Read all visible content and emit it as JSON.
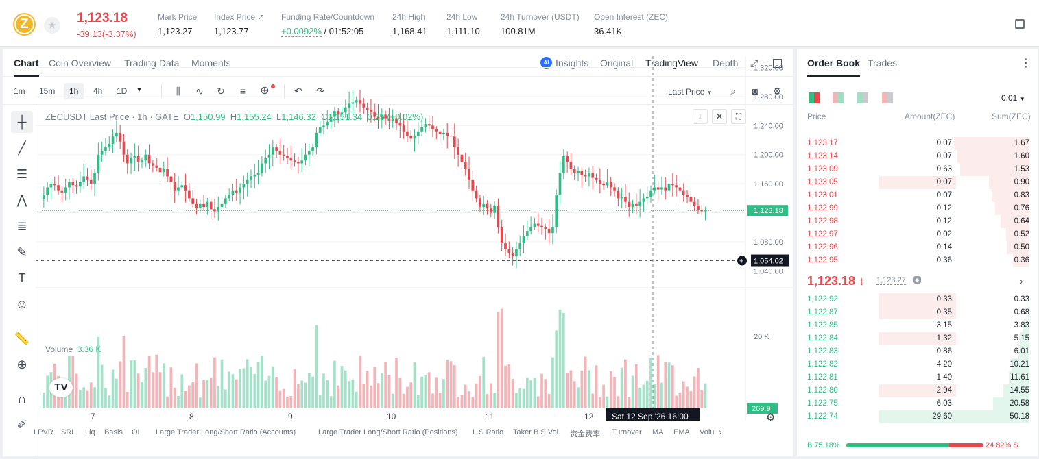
{
  "header": {
    "price": "1,123.18",
    "change": "-39.13(-3.37%)",
    "stats": [
      {
        "label": "Mark Price",
        "value": "1,123.27",
        "x": 230
      },
      {
        "label": "Index Price ↗",
        "value": "1,123.77",
        "x": 312
      },
      {
        "label": "Funding Rate/Countdown",
        "value": "+0.0092%",
        "value2": " / 01:52:05",
        "x": 410
      },
      {
        "label": "24h High",
        "value": "1,168.41",
        "x": 572
      },
      {
        "label": "24h Low",
        "value": "1,111.10",
        "x": 651
      },
      {
        "label": "24h Turnover (USDT)",
        "value": "100.81M",
        "x": 730
      },
      {
        "label": "Open Interest (ZEC)",
        "value": "36.41K",
        "x": 866
      }
    ]
  },
  "tabs": [
    "Chart",
    "Coin Overview",
    "Trading Data",
    "Moments"
  ],
  "views": [
    "Insights",
    "Original",
    "TradingView",
    "Depth"
  ],
  "intervals": [
    "1m",
    "15m",
    "1h",
    "4h",
    "1D"
  ],
  "price_type": "Last Price",
  "legend": {
    "symbol": "ZECUSDT Last Price · 1h · GATE",
    "o": "1,150.99",
    "h": "1,155.24",
    "l": "1,146.32",
    "c": "1,151.34",
    "chg": "0.25 (+0.02%)"
  },
  "volume_label": "Volume",
  "volume_value": "3.36 K",
  "chart_data": {
    "type": "candlestick",
    "title": "ZECUSDT Last Price · 1h · GATE",
    "y_ticks": [
      "1,320.00",
      "1,280.00",
      "1,240.00",
      "1,200.00",
      "1,160.00",
      "1,080.00",
      "1,040.00"
    ],
    "y_tick_values": [
      1320,
      1280,
      1240,
      1200,
      1160,
      1080,
      1040
    ],
    "ylim": [
      1030,
      1328
    ],
    "x_ticks": [
      "7",
      "8",
      "9",
      "10",
      "11",
      "12"
    ],
    "last_price_label": "1,123.18",
    "last_price": 1123.18,
    "crosshair_price_label": "1,054.02",
    "crosshair_price": 1054.02,
    "crosshair_time": "Sat 12 Sep '26   16:00",
    "volume_tick": "20 K",
    "volume_tick_value": 20000,
    "volume_last": "269.9",
    "closes": [
      1145,
      1155,
      1160,
      1158,
      1150,
      1148,
      1155,
      1162,
      1158,
      1156,
      1163,
      1170,
      1165,
      1160,
      1175,
      1200,
      1205,
      1210,
      1215,
      1225,
      1230,
      1218,
      1200,
      1188,
      1195,
      1198,
      1190,
      1192,
      1200,
      1188,
      1185,
      1182,
      1176,
      1180,
      1170,
      1162,
      1150,
      1155,
      1158,
      1150,
      1140,
      1132,
      1126,
      1132,
      1128,
      1135,
      1125,
      1122,
      1128,
      1132,
      1140,
      1145,
      1150,
      1148,
      1155,
      1160,
      1165,
      1170,
      1172,
      1175,
      1188,
      1195,
      1200,
      1210,
      1205,
      1200,
      1198,
      1195,
      1192,
      1190,
      1188,
      1192,
      1200,
      1205,
      1210,
      1230,
      1238,
      1240,
      1245,
      1252,
      1260,
      1255,
      1258,
      1265,
      1270,
      1272,
      1275,
      1270,
      1265,
      1262,
      1258,
      1252,
      1248,
      1255,
      1250,
      1246,
      1250,
      1243,
      1240,
      1232,
      1226,
      1222,
      1226,
      1232,
      1238,
      1242,
      1240,
      1235,
      1232,
      1228,
      1230,
      1226,
      1225,
      1210,
      1200,
      1190,
      1180,
      1165,
      1150,
      1140,
      1128,
      1132,
      1126,
      1120,
      1130,
      1100,
      1078,
      1070,
      1065,
      1060,
      1070,
      1078,
      1088,
      1095,
      1100,
      1105,
      1102,
      1100,
      1098,
      1092,
      1100,
      1145,
      1175,
      1198,
      1190,
      1180,
      1175,
      1178,
      1172,
      1170,
      1175,
      1168,
      1165,
      1160,
      1158,
      1162,
      1155,
      1150,
      1140,
      1142,
      1135,
      1128,
      1132,
      1130,
      1135,
      1140,
      1142,
      1150,
      1155,
      1152,
      1155,
      1150,
      1160,
      1158,
      1155,
      1150,
      1145,
      1142,
      1135,
      1130,
      1124,
      1122,
      1123
    ]
  },
  "orderbook": {
    "tabs": [
      "Order Book",
      "Trades"
    ],
    "tick": "0.01",
    "headers": [
      "Price",
      "Amount(ZEC)",
      "Sum(ZEC)"
    ],
    "asks": [
      {
        "p": "1,123.17",
        "a": "0.07",
        "s": "1.67",
        "sv": 1.67,
        "av": 0.07
      },
      {
        "p": "1,123.14",
        "a": "0.07",
        "s": "1.60",
        "sv": 1.6,
        "av": 0.07
      },
      {
        "p": "1,123.09",
        "a": "0.63",
        "s": "1.53",
        "sv": 1.53,
        "av": 0.63
      },
      {
        "p": "1,123.05",
        "a": "0.07",
        "s": "0.90",
        "sv": 0.9,
        "av": 0.07,
        "hl": true
      },
      {
        "p": "1,123.01",
        "a": "0.07",
        "s": "0.83",
        "sv": 0.83,
        "av": 0.07
      },
      {
        "p": "1,122.99",
        "a": "0.12",
        "s": "0.76",
        "sv": 0.76,
        "av": 0.12
      },
      {
        "p": "1,122.98",
        "a": "0.12",
        "s": "0.64",
        "sv": 0.64,
        "av": 0.12
      },
      {
        "p": "1,122.97",
        "a": "0.02",
        "s": "0.52",
        "sv": 0.52,
        "av": 0.02
      },
      {
        "p": "1,122.96",
        "a": "0.14",
        "s": "0.50",
        "sv": 0.5,
        "av": 0.14
      },
      {
        "p": "1,122.95",
        "a": "0.36",
        "s": "0.36",
        "sv": 0.36,
        "av": 0.36
      }
    ],
    "mid": "1,123.18 ↓",
    "mark": "1,123.27",
    "bids": [
      {
        "p": "1,122.92",
        "a": "0.33",
        "s": "0.33",
        "sv": 0.33,
        "hl": true
      },
      {
        "p": "1,122.87",
        "a": "0.35",
        "s": "0.68",
        "sv": 0.68,
        "hl": true
      },
      {
        "p": "1,122.85",
        "a": "3.15",
        "s": "3.83",
        "sv": 3.83
      },
      {
        "p": "1,122.84",
        "a": "1.32",
        "s": "5.15",
        "sv": 5.15,
        "hl": true
      },
      {
        "p": "1,122.83",
        "a": "0.86",
        "s": "6.01",
        "sv": 6.01
      },
      {
        "p": "1,122.82",
        "a": "4.20",
        "s": "10.21",
        "sv": 10.21
      },
      {
        "p": "1,122.81",
        "a": "1.40",
        "s": "11.61",
        "sv": 11.61
      },
      {
        "p": "1,122.80",
        "a": "2.94",
        "s": "14.55",
        "sv": 14.55,
        "hl": true
      },
      {
        "p": "1,122.75",
        "a": "6.03",
        "s": "20.58",
        "sv": 20.58
      },
      {
        "p": "1,122.74",
        "a": "29.60",
        "s": "50.18",
        "sv": 50.18,
        "hlg": true
      }
    ],
    "buy_ratio": "B 75.18%",
    "sell_ratio": "24.82% S",
    "buy_pct": 75.18
  },
  "indicators": [
    "LPVR",
    "SRL",
    "Liq",
    "Basis",
    "OI",
    "Large Trader Long/Short Ratio (Accounts)",
    "Large Trader Long/Short Ratio (Positions)",
    "L.S Ratio",
    "Taker B.S Vol.",
    "资金费率",
    "Turnover",
    "MA",
    "EMA",
    "Volu"
  ],
  "colors": {
    "up": "#2ebd85",
    "down": "#e5484d"
  }
}
